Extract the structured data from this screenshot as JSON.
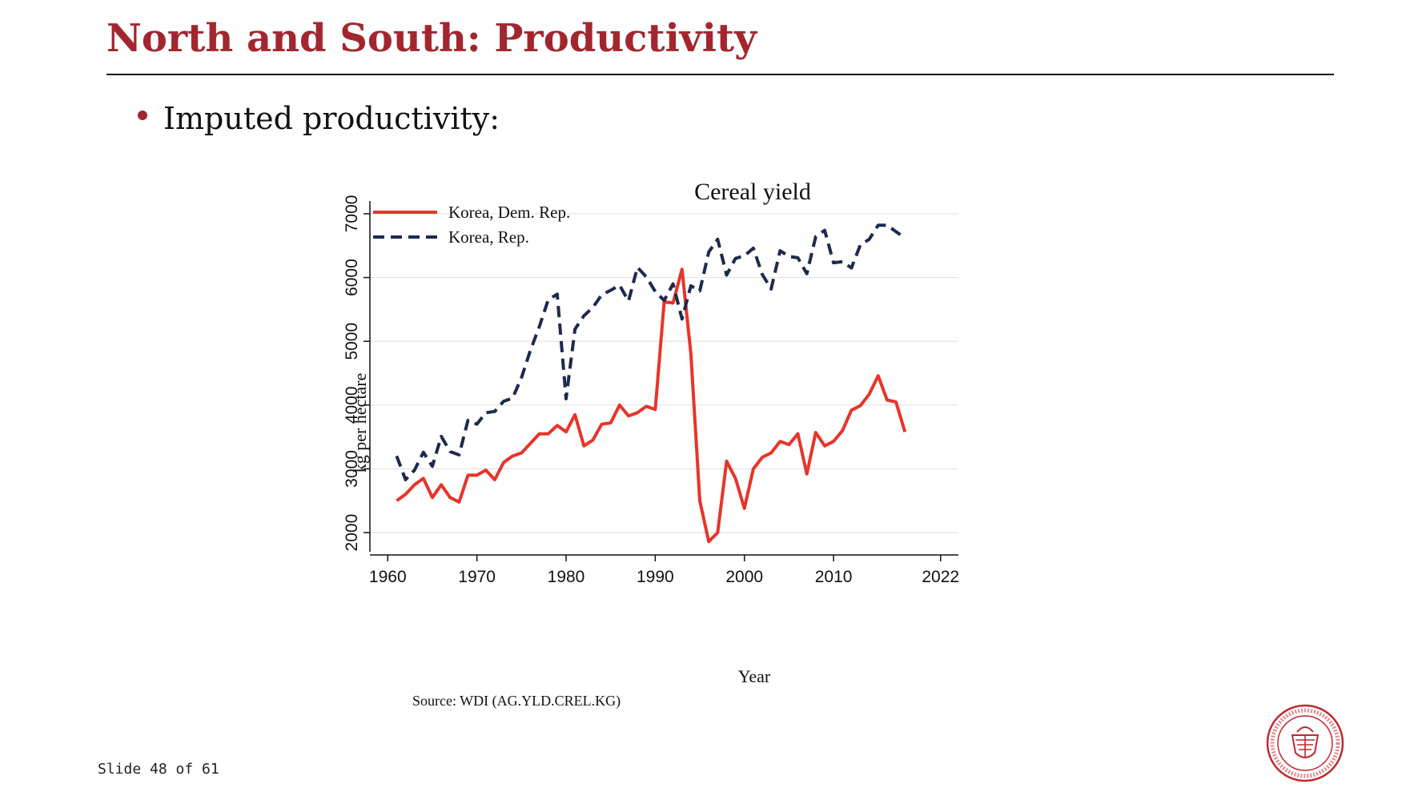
{
  "slide": {
    "title": "North and South: Productivity",
    "bullet": "Imputed productivity:",
    "slide_number": "Slide 48 of 61",
    "accent_color": "#a3262f",
    "logo": {
      "icon": "carnegie-mellon-seal-icon",
      "text": "CARNEGIE MELLON UNIVERSITY · PITTSBURGH PENNSYLVANIA 1900"
    }
  },
  "chart_data": {
    "type": "line",
    "title": "Cereal yield",
    "xlabel": "Year",
    "ylabel": "kg per hectare",
    "source": "Source: WDI (AG.YLD.CREL.KG)",
    "xlim": [
      1958,
      2024
    ],
    "ylim": [
      1700,
      7200
    ],
    "xticks": [
      1960,
      1970,
      1980,
      1990,
      2000,
      2010,
      2022
    ],
    "yticks": [
      2000,
      3000,
      4000,
      5000,
      6000,
      7000
    ],
    "grid": true,
    "legend_position": "top-left",
    "series": [
      {
        "name": "Korea, Dem. Rep.",
        "color": "#e8342a",
        "style": "solid",
        "x": [
          1961,
          1962,
          1963,
          1964,
          1965,
          1966,
          1967,
          1968,
          1969,
          1970,
          1971,
          1972,
          1973,
          1974,
          1975,
          1976,
          1977,
          1978,
          1979,
          1980,
          1981,
          1982,
          1983,
          1984,
          1985,
          1986,
          1987,
          1988,
          1989,
          1990,
          1991,
          1992,
          1993,
          1994,
          1995,
          1996,
          1997,
          1998,
          1999,
          2000,
          2001,
          2002,
          2003,
          2004,
          2005,
          2006,
          2007,
          2008,
          2009,
          2010,
          2011,
          2012,
          2013,
          2014,
          2015,
          2016,
          2017,
          2018
        ],
        "values": [
          2500,
          2600,
          2750,
          2850,
          2550,
          2750,
          2550,
          2480,
          2900,
          2900,
          2980,
          2830,
          3100,
          3200,
          3250,
          3400,
          3550,
          3550,
          3680,
          3580,
          3850,
          3360,
          3450,
          3700,
          3720,
          4000,
          3830,
          3880,
          3980,
          3930,
          5620,
          5600,
          6130,
          4800,
          2500,
          1860,
          2000,
          3120,
          2850,
          2380,
          3000,
          3180,
          3250,
          3430,
          3380,
          3550,
          2920,
          3570,
          3360,
          3430,
          3600,
          3920,
          3990,
          4170,
          4460,
          4080,
          4050,
          3580
        ]
      },
      {
        "name": "Korea, Rep.",
        "color": "#1c2a4e",
        "style": "dashed",
        "x": [
          1961,
          1962,
          1963,
          1964,
          1965,
          1966,
          1967,
          1968,
          1969,
          1970,
          1971,
          1972,
          1973,
          1974,
          1975,
          1976,
          1977,
          1978,
          1979,
          1980,
          1981,
          1982,
          1983,
          1984,
          1985,
          1986,
          1987,
          1988,
          1989,
          1990,
          1991,
          1992,
          1993,
          1994,
          1995,
          1996,
          1997,
          1998,
          1999,
          2000,
          2001,
          2002,
          2003,
          2004,
          2005,
          2006,
          2007,
          2008,
          2009,
          2010,
          2011,
          2012,
          2013,
          2014,
          2015,
          2016,
          2017,
          2018
        ],
        "values": [
          3200,
          2830,
          2980,
          3260,
          3040,
          3510,
          3270,
          3220,
          3760,
          3700,
          3880,
          3900,
          4060,
          4110,
          4430,
          4860,
          5230,
          5650,
          5740,
          4100,
          5190,
          5400,
          5530,
          5730,
          5800,
          5880,
          5630,
          6160,
          6010,
          5780,
          5640,
          5900,
          5350,
          5870,
          5790,
          6400,
          6600,
          6040,
          6300,
          6340,
          6460,
          6050,
          5820,
          6420,
          6330,
          6310,
          6060,
          6640,
          6740,
          6230,
          6250,
          6150,
          6510,
          6600,
          6820,
          6820,
          6720,
          6620
        ]
      }
    ]
  }
}
